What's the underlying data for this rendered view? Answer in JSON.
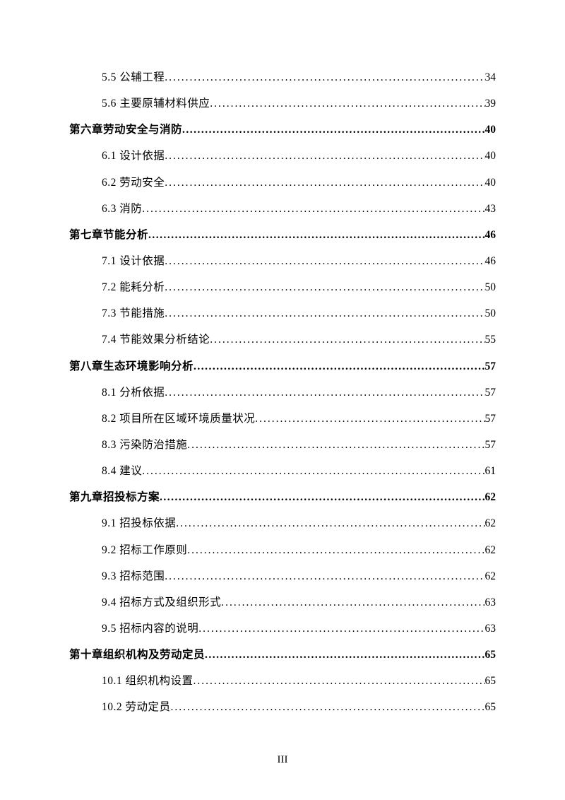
{
  "entries": [
    {
      "level": "section",
      "label": "5.5 公辅工程",
      "page": "34"
    },
    {
      "level": "section",
      "label": "5.6 主要原辅材料供应",
      "page": "39"
    },
    {
      "level": "chapter",
      "label": "第六章劳动安全与消防",
      "page": "40"
    },
    {
      "level": "section",
      "label": "6.1 设计依据",
      "page": "40"
    },
    {
      "level": "section",
      "label": "6.2 劳动安全",
      "page": "40"
    },
    {
      "level": "section",
      "label": "6.3 消防",
      "page": "43"
    },
    {
      "level": "chapter",
      "label": "第七章节能分析",
      "page": "46"
    },
    {
      "level": "section",
      "label": "7.1 设计依据",
      "page": "46"
    },
    {
      "level": "section",
      "label": "7.2 能耗分析",
      "page": "50"
    },
    {
      "level": "section",
      "label": "7.3 节能措施",
      "page": "50"
    },
    {
      "level": "section",
      "label": "7.4 节能效果分析结论",
      "page": "55"
    },
    {
      "level": "chapter",
      "label": "第八章生态环境影响分析",
      "page": "57"
    },
    {
      "level": "section",
      "label": "8.1 分析依据",
      "page": "57"
    },
    {
      "level": "section",
      "label": "8.2 项目所在区域环境质量状况",
      "page": "57"
    },
    {
      "level": "section",
      "label": "8.3 污染防治措施",
      "page": "57"
    },
    {
      "level": "section",
      "label": "8.4 建议",
      "page": "61"
    },
    {
      "level": "chapter",
      "label": "第九章招投标方案",
      "page": "62"
    },
    {
      "level": "section",
      "label": "9.1 招投标依据",
      "page": "62"
    },
    {
      "level": "section",
      "label": "9.2 招标工作原则",
      "page": "62"
    },
    {
      "level": "section",
      "label": "9.3 招标范围",
      "page": "62"
    },
    {
      "level": "section",
      "label": "9.4 招标方式及组织形式",
      "page": "63"
    },
    {
      "level": "section",
      "label": "9.5 招标内容的说明",
      "page": "63"
    },
    {
      "level": "chapter",
      "label": "第十章组织机构及劳动定员",
      "page": "65"
    },
    {
      "level": "section",
      "label": "10.1 组织机构设置",
      "page": "65"
    },
    {
      "level": "section",
      "label": "10.2 劳动定员",
      "page": "65"
    }
  ],
  "pageNumber": "III",
  "dotsText": " ...................................................................................................................",
  "chapterTrailSpace": " "
}
